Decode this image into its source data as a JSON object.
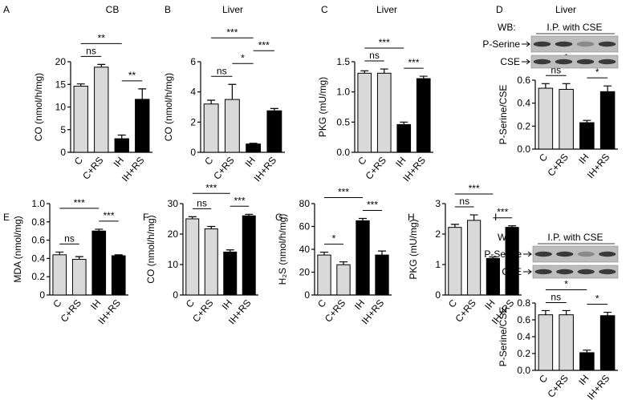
{
  "chart_data": [
    {
      "type": "bar",
      "panel": "A",
      "title": "CB",
      "y_label": "CO (nmol/h/mg)",
      "categories": [
        "C",
        "C+RS",
        "IH",
        "IH+RS"
      ],
      "values": [
        14.6,
        18.8,
        3.0,
        11.7
      ],
      "errors": [
        0.5,
        0.6,
        0.8,
        2.3
      ],
      "colors": [
        "#d9d9d9",
        "#d9d9d9",
        "#000000",
        "#000000"
      ],
      "ylim": [
        0,
        20
      ],
      "yticks": [
        0,
        5,
        10,
        15,
        20
      ],
      "annotations": [
        {
          "text": "ns",
          "between": [
            "C",
            "C+RS"
          ]
        },
        {
          "text": "**",
          "between": [
            "IH",
            "IH+RS"
          ]
        },
        {
          "text": "**",
          "between": [
            "C",
            "IH"
          ]
        }
      ]
    },
    {
      "type": "bar",
      "panel": "B",
      "title": "Liver",
      "y_label": "CO (nmol/h/mg)",
      "categories": [
        "C",
        "C+RS",
        "IH",
        "IH+RS"
      ],
      "values": [
        3.2,
        3.5,
        0.55,
        2.75
      ],
      "errors": [
        0.25,
        1.0,
        0.05,
        0.15
      ],
      "colors": [
        "#d9d9d9",
        "#d9d9d9",
        "#000000",
        "#000000"
      ],
      "ylim": [
        0,
        6
      ],
      "yticks": [
        0,
        2,
        4,
        6
      ],
      "annotations": [
        {
          "text": "ns",
          "between": [
            "C",
            "C+RS"
          ]
        },
        {
          "text": "*",
          "between": [
            "C+RS",
            "IH"
          ]
        },
        {
          "text": "***",
          "between": [
            "IH",
            "IH+RS"
          ]
        },
        {
          "text": "***",
          "between": [
            "C",
            "IH"
          ]
        }
      ]
    },
    {
      "type": "bar",
      "panel": "C",
      "title": "Liver",
      "y_label": "PKG (mU/mg)",
      "categories": [
        "C",
        "C+RS",
        "IH",
        "IH+RS"
      ],
      "values": [
        1.31,
        1.31,
        0.46,
        1.22
      ],
      "errors": [
        0.04,
        0.07,
        0.04,
        0.04
      ],
      "colors": [
        "#d9d9d9",
        "#d9d9d9",
        "#000000",
        "#000000"
      ],
      "ylim": [
        0,
        1.5
      ],
      "yticks": [
        {
          "value": 0,
          "label": "0.0"
        },
        0.5,
        {
          "value": 1,
          "label": "1.0"
        },
        1.5
      ],
      "annotations": [
        {
          "text": "ns",
          "between": [
            "C",
            "C+RS"
          ]
        },
        {
          "text": "***",
          "between": [
            "IH",
            "IH+RS"
          ]
        },
        {
          "text": "***",
          "between": [
            "C",
            "IH"
          ]
        }
      ]
    },
    {
      "type": "bar",
      "panel": "D",
      "title": "Liver",
      "y_label": "P-Serine/CSE",
      "blot": {
        "label": "WB:",
        "header": "I.P. with CSE",
        "rows": [
          "P-Serine",
          "CSE"
        ]
      },
      "categories": [
        "C",
        "C+RS",
        "IH",
        "IH+RS"
      ],
      "values": [
        0.53,
        0.52,
        0.23,
        0.5
      ],
      "errors": [
        0.04,
        0.05,
        0.02,
        0.05
      ],
      "colors": [
        "#d9d9d9",
        "#d9d9d9",
        "#000000",
        "#000000"
      ],
      "ylim": [
        0,
        0.6
      ],
      "yticks": [
        {
          "value": 0,
          "label": "0.0"
        },
        0.2,
        0.4,
        0.6
      ],
      "annotations": [
        {
          "text": "ns",
          "between": [
            "C",
            "C+RS"
          ]
        },
        {
          "text": "*",
          "between": [
            "IH",
            "IH+RS"
          ]
        },
        {
          "text": "*",
          "between": [
            "C",
            "IH"
          ]
        }
      ]
    },
    {
      "type": "bar",
      "panel": "E",
      "y_label": "MDA (nmol/mg)",
      "categories": [
        "C",
        "C+RS",
        "IH",
        "IH+RS"
      ],
      "values": [
        0.44,
        0.39,
        0.7,
        0.43
      ],
      "errors": [
        0.03,
        0.03,
        0.02,
        0.01
      ],
      "colors": [
        "#d9d9d9",
        "#d9d9d9",
        "#000000",
        "#000000"
      ],
      "ylim": [
        0,
        1
      ],
      "yticks": [
        0,
        0.2,
        0.4,
        0.6,
        0.8,
        {
          "value": 1,
          "label": "1.0"
        }
      ],
      "annotations": [
        {
          "text": "ns",
          "between": [
            "C",
            "C+RS"
          ]
        },
        {
          "text": "***",
          "between": [
            "IH",
            "IH+RS"
          ]
        },
        {
          "text": "***",
          "between": [
            "C",
            "IH"
          ]
        }
      ]
    },
    {
      "type": "bar",
      "panel": "F",
      "y_label": "CO (nmol/h/mg)",
      "categories": [
        "C",
        "C+RS",
        "IH",
        "IH+RS"
      ],
      "values": [
        25,
        21.7,
        14.1,
        26
      ],
      "errors": [
        0.7,
        0.8,
        0.7,
        0.5
      ],
      "colors": [
        "#d9d9d9",
        "#d9d9d9",
        "#000000",
        "#000000"
      ],
      "ylim": [
        0,
        30
      ],
      "yticks": [
        0,
        10,
        20,
        30
      ],
      "annotations": [
        {
          "text": "ns",
          "between": [
            "C",
            "C+RS"
          ]
        },
        {
          "text": "***",
          "between": [
            "IH",
            "IH+RS"
          ]
        },
        {
          "text": "***",
          "between": [
            "C",
            "IH"
          ]
        }
      ]
    },
    {
      "type": "bar",
      "panel": "G",
      "y_label": "H₂S (nmol/h/mg)",
      "categories": [
        "C",
        "C+RS",
        "IH",
        "IH+RS"
      ],
      "values": [
        35,
        26.5,
        65,
        35
      ],
      "errors": [
        2.5,
        2.5,
        2,
        3.5
      ],
      "colors": [
        "#d9d9d9",
        "#d9d9d9",
        "#000000",
        "#000000"
      ],
      "ylim": [
        0,
        80
      ],
      "yticks": [
        0,
        20,
        40,
        60,
        80
      ],
      "annotations": [
        {
          "text": "*",
          "between": [
            "C",
            "C+RS"
          ]
        },
        {
          "text": "***",
          "between": [
            "IH",
            "IH+RS"
          ]
        },
        {
          "text": "***",
          "between": [
            "C",
            "IH"
          ]
        }
      ]
    },
    {
      "type": "bar",
      "panel": "H",
      "y_label": "PKG (mU/mg)",
      "categories": [
        "C",
        "C+RS",
        "IH",
        "IH+RS"
      ],
      "values": [
        2.22,
        2.45,
        1.2,
        2.22
      ],
      "errors": [
        0.1,
        0.18,
        0.05,
        0.05
      ],
      "colors": [
        "#d9d9d9",
        "#d9d9d9",
        "#000000",
        "#000000"
      ],
      "ylim": [
        0,
        3
      ],
      "yticks": [
        0,
        1,
        2,
        3
      ],
      "annotations": [
        {
          "text": "ns",
          "between": [
            "C",
            "C+RS"
          ]
        },
        {
          "text": "***",
          "between": [
            "IH",
            "IH+RS"
          ]
        },
        {
          "text": "***",
          "between": [
            "C",
            "IH"
          ]
        }
      ]
    },
    {
      "type": "bar",
      "panel": "I",
      "y_label": "P-Serine/CSE",
      "blot": {
        "label": "WB:",
        "header": "I.P. with CSE",
        "rows": [
          "P-Serine",
          "CSE"
        ]
      },
      "categories": [
        "C",
        "C+RS",
        "IH",
        "IH+RS"
      ],
      "values": [
        0.66,
        0.66,
        0.21,
        0.65
      ],
      "errors": [
        0.05,
        0.05,
        0.03,
        0.04
      ],
      "colors": [
        "#d9d9d9",
        "#d9d9d9",
        "#000000",
        "#000000"
      ],
      "ylim": [
        0,
        0.8
      ],
      "yticks": [
        {
          "value": 0,
          "label": "0.0"
        },
        0.2,
        0.4,
        0.6,
        0.8
      ],
      "annotations": [
        {
          "text": "ns",
          "between": [
            "C",
            "C+RS"
          ]
        },
        {
          "text": "*",
          "between": [
            "IH",
            "IH+RS"
          ]
        },
        {
          "text": "*",
          "between": [
            "C",
            "IH"
          ]
        }
      ]
    }
  ]
}
